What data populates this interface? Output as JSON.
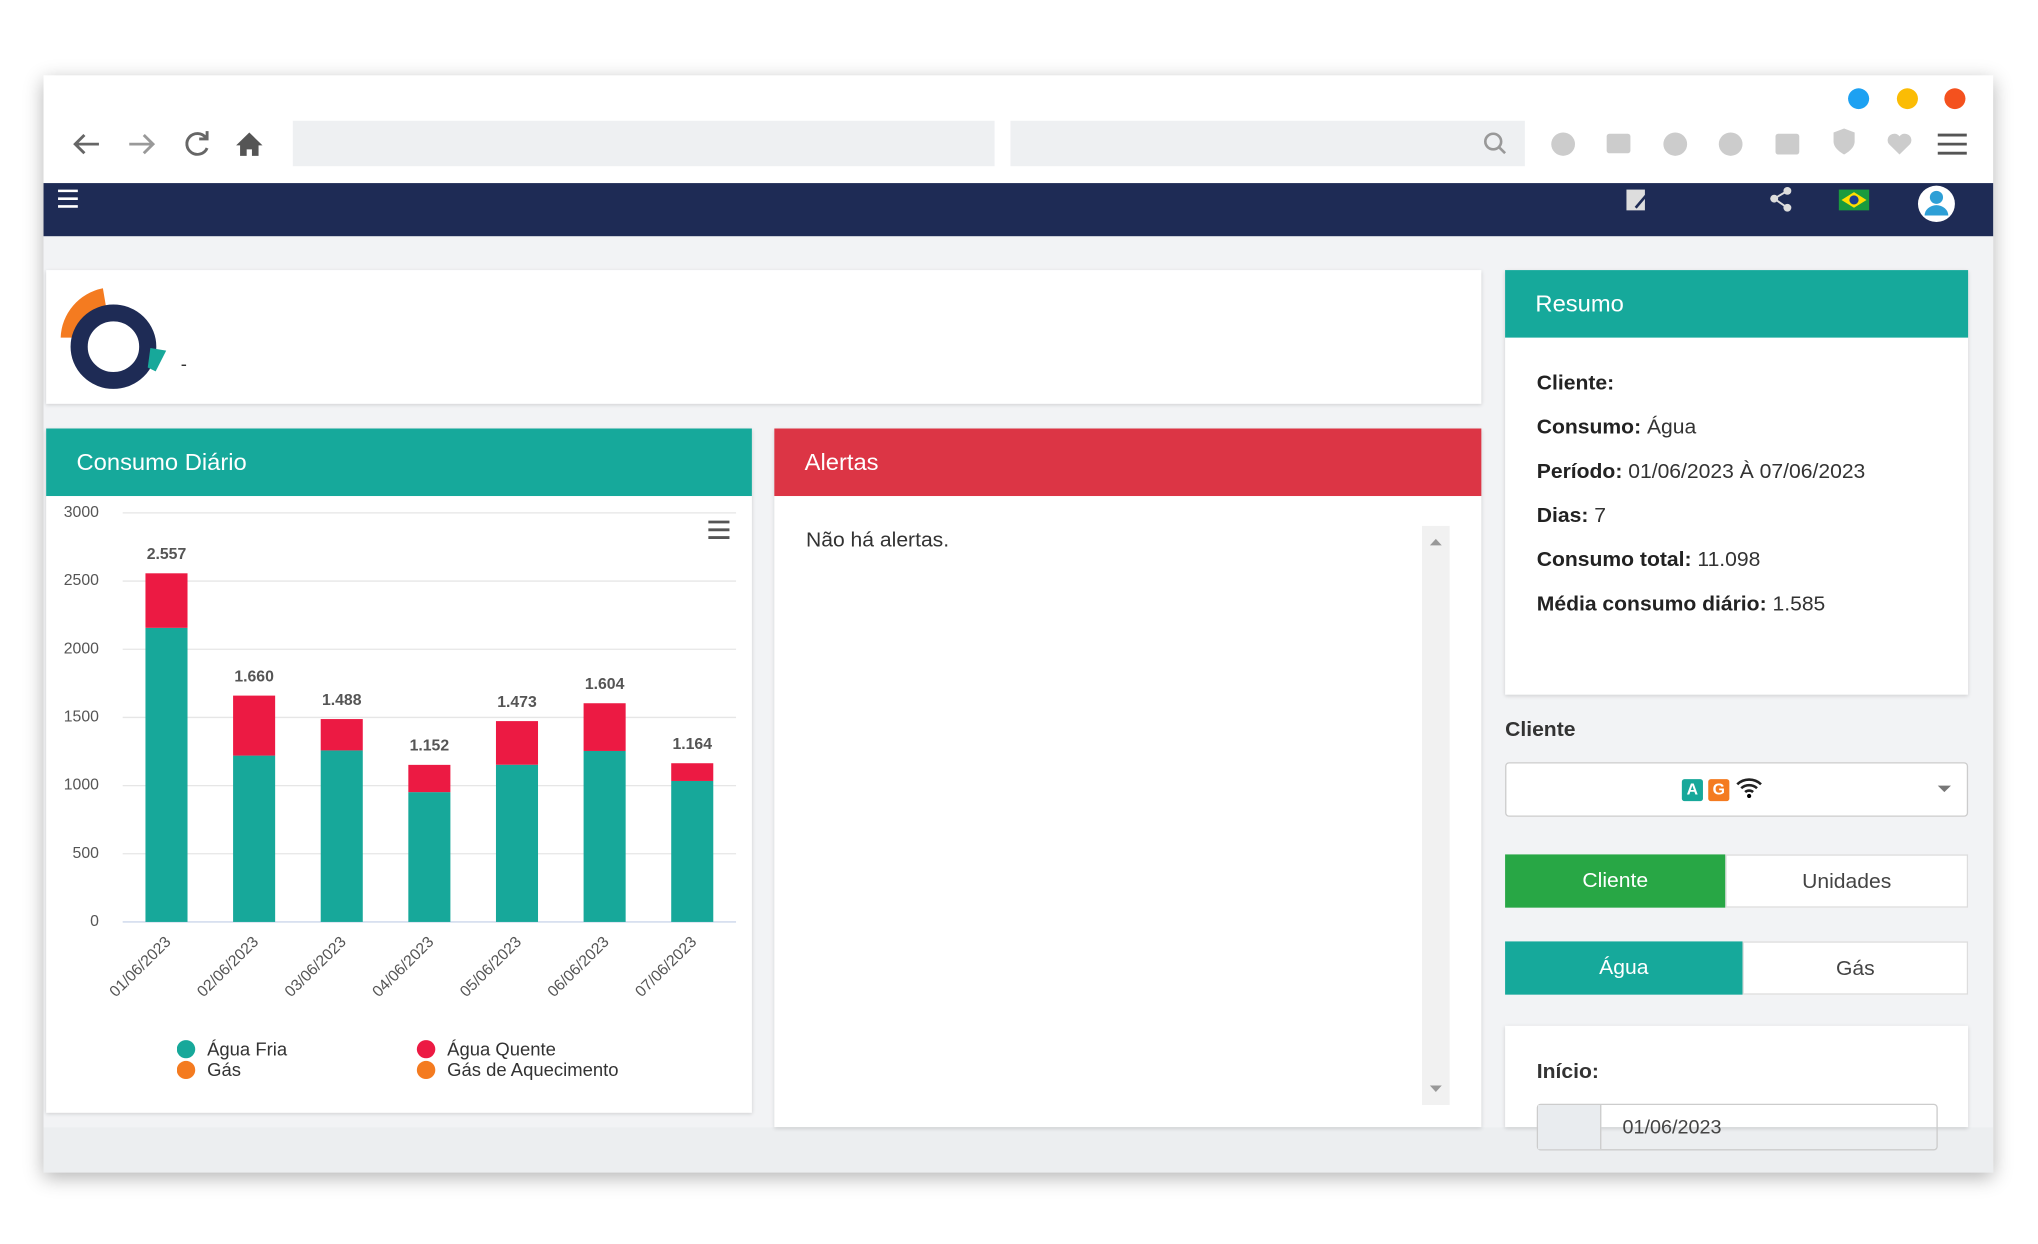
{
  "navbar": {
    "flag_alt": null
  },
  "logo_card": {
    "text": "-"
  },
  "chart_data": {
    "type": "stacked-bar",
    "title": "Consumo Diário",
    "categories": [
      "01/06/2023",
      "02/06/2023",
      "03/06/2023",
      "04/06/2023",
      "05/06/2023",
      "06/06/2023",
      "07/06/2023"
    ],
    "series": [
      {
        "name": "Água Fria",
        "color": "#17a89a",
        "values": [
          2157,
          1220,
          1258,
          952,
          1153,
          1254,
          1034
        ]
      },
      {
        "name": "Água Quente",
        "color": "#ec1a43",
        "values": [
          400,
          440,
          230,
          200,
          320,
          350,
          130
        ]
      },
      {
        "name": "Gás",
        "color": "#f47b20",
        "values": [
          null,
          null,
          null,
          null,
          null,
          null,
          null
        ]
      },
      {
        "name": "Gás de Aquecimento",
        "color": "#f47b20",
        "values": [
          null,
          null,
          null,
          null,
          null,
          null,
          null
        ]
      }
    ],
    "totals": [
      2557,
      1660,
      1488,
      1152,
      1473,
      1604,
      1164
    ],
    "total_labels": [
      "2.557",
      "1.660",
      "1.488",
      "1.152",
      "1.473",
      "1.604",
      "1.164"
    ],
    "ylim": [
      0,
      3000
    ],
    "yticks": [
      0,
      500,
      1000,
      1500,
      2000,
      2500,
      3000
    ],
    "grid": true
  },
  "alertas": {
    "title": "Alertas",
    "message": "Não há alertas."
  },
  "resumo": {
    "title": "Resumo",
    "rows": [
      {
        "label": "Cliente:"
      },
      {
        "label": "Consumo:",
        "value": "Água"
      },
      {
        "label": "Período:",
        "value": "01/06/2023 À 07/06/2023"
      },
      {
        "label": "Dias:",
        "value": "7"
      },
      {
        "label": "Consumo total:",
        "value": "11.098"
      },
      {
        "label": "Média consumo diário:",
        "value": "1.585"
      }
    ]
  },
  "filters": {
    "cliente_label": "Cliente",
    "badges": [
      "A",
      "G"
    ],
    "scope_buttons": [
      "Cliente",
      "Unidades"
    ],
    "type_buttons": [
      "Água",
      "Gás"
    ],
    "inicio_label": "Início:",
    "inicio_value": "01/06/2023"
  }
}
